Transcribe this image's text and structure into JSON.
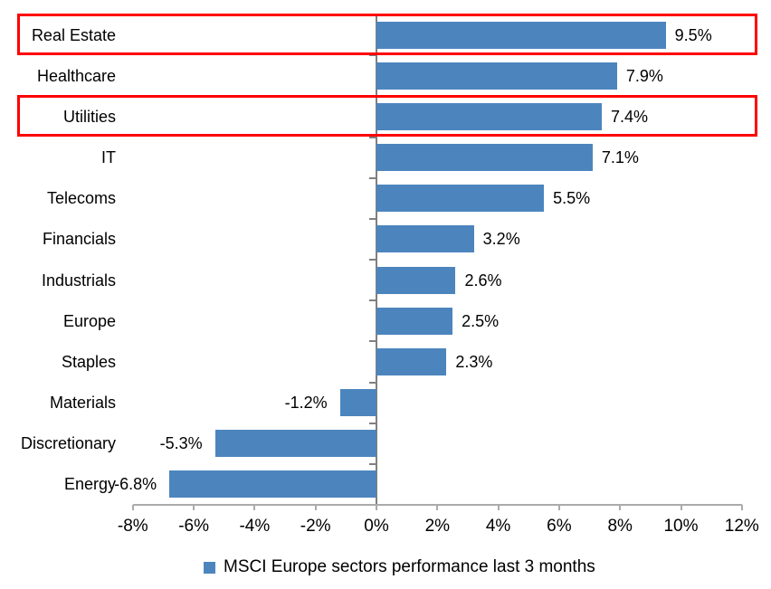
{
  "chart_data": {
    "type": "bar",
    "orientation": "horizontal",
    "categories": [
      "Real Estate",
      "Healthcare",
      "Utilities",
      "IT",
      "Telecoms",
      "Financials",
      "Industrials",
      "Europe",
      "Staples",
      "Materials",
      "Discretionary",
      "Energy"
    ],
    "values": [
      9.5,
      7.9,
      7.4,
      7.1,
      5.5,
      3.2,
      2.6,
      2.5,
      2.3,
      -1.2,
      -5.3,
      -6.8
    ],
    "value_labels": [
      "9.5%",
      "7.9%",
      "7.4%",
      "7.1%",
      "5.5%",
      "3.2%",
      "2.6%",
      "2.5%",
      "2.3%",
      "-1.2%",
      "-5.3%",
      "-6.8%"
    ],
    "x_tick_values": [
      -8,
      -6,
      -4,
      -2,
      0,
      2,
      4,
      6,
      8,
      10,
      12
    ],
    "x_tick_labels": [
      "-8%",
      "-6%",
      "-4%",
      "-2%",
      "0%",
      "2%",
      "4%",
      "6%",
      "8%",
      "10%",
      "12%"
    ],
    "xlim": [
      -8,
      12
    ],
    "grid": false,
    "legend": "MSCI Europe sectors performance last 3 months",
    "legend_position": "bottom-center",
    "highlighted_categories": [
      "Real Estate",
      "Utilities"
    ],
    "colors": {
      "bar": "#4C85BE",
      "value_axis_line": "#ABABAB",
      "category_axis_line": "#808080",
      "highlight_border": "#FF0000",
      "text": "#000000",
      "background": "#FFFFFF"
    }
  }
}
